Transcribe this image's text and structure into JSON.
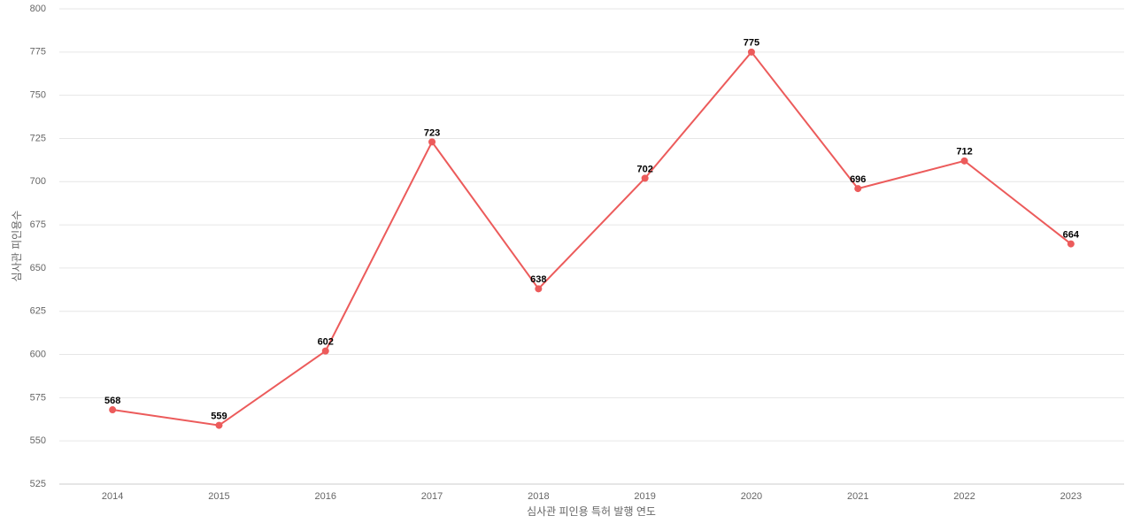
{
  "chart_data": {
    "type": "line",
    "x_label": "심사관 피인용 특허 발행 연도",
    "y_label": "심사관 피인용수",
    "categories": [
      "2014",
      "2015",
      "2016",
      "2017",
      "2018",
      "2019",
      "2020",
      "2021",
      "2022",
      "2023"
    ],
    "series": [
      {
        "color": "#ec5b5b",
        "values": [
          568,
          559,
          602,
          723,
          638,
          702,
          775,
          696,
          712,
          664
        ]
      }
    ],
    "ylim": [
      525,
      800
    ],
    "yticks": [
      525,
      550,
      575,
      600,
      625,
      650,
      675,
      700,
      725,
      750,
      775,
      800
    ],
    "grid": true
  }
}
